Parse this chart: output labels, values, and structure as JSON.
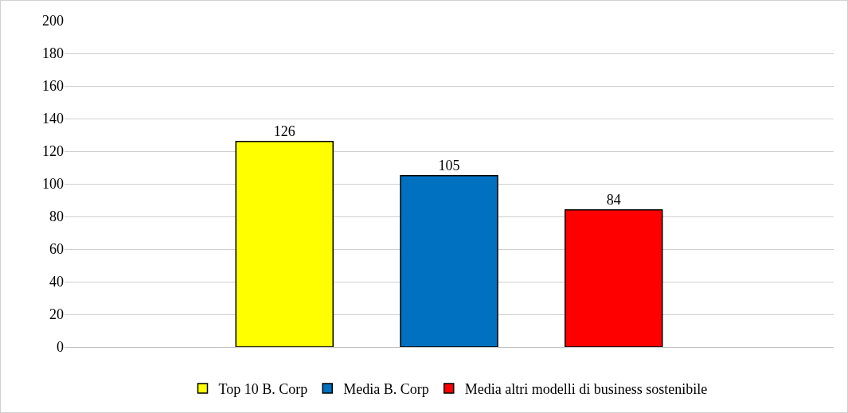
{
  "chart_data": {
    "type": "bar",
    "categories": [
      null
    ],
    "series": [
      {
        "name": "Top 10 B. Corp",
        "color": "#ffff00",
        "values": [
          126
        ]
      },
      {
        "name": "Media B. Corp",
        "color": "#0070c0",
        "values": [
          105
        ]
      },
      {
        "name": "Media altri modelli di business sostenibile",
        "color": "#ff0000",
        "values": [
          84
        ]
      }
    ],
    "ylim": [
      0,
      200
    ],
    "yticks": [
      0,
      20,
      40,
      60,
      80,
      100,
      120,
      140,
      160,
      180,
      200
    ],
    "grid": "y",
    "legend": "bottom",
    "data_labels": true
  }
}
